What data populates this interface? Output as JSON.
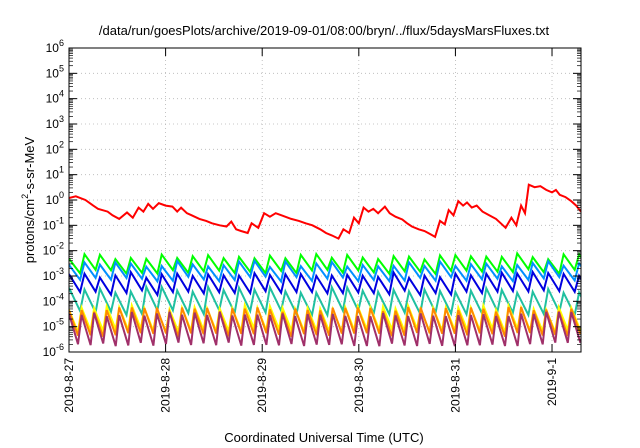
{
  "chart_data": {
    "type": "line",
    "title": "/data/run/goesPlots/archive/2019-09-01/08:00/bryn/../flux/5daysMarsFluxes.txt",
    "xlabel": "Coordinated Universal Time (UTC)",
    "ylabel_prefix": "protons/cm",
    "ylabel_sup": "2",
    "ylabel_suffix": "-s-sr-MeV",
    "x_ticks": [
      "2019-8-27",
      "2019-8-28",
      "2019-8-29",
      "2019-8-30",
      "2019-8-31",
      "2019-9-1"
    ],
    "xlim_days": [
      0,
      5.3
    ],
    "y_scale": "log",
    "ylim": [
      1e-06,
      1000000.0
    ],
    "y_tick_base": "10",
    "y_tick_exponents": [
      "-6",
      "-5",
      "-4",
      "-3",
      "-2",
      "-1",
      "0",
      "1",
      "2",
      "3",
      "4",
      "5",
      "6"
    ],
    "grid": true,
    "series": [
      {
        "color": "#ff0000",
        "points": [
          [
            0.0,
            1.2
          ],
          [
            0.07,
            1.4
          ],
          [
            0.17,
            1.0
          ],
          [
            0.25,
            0.6
          ],
          [
            0.3,
            0.45
          ],
          [
            0.4,
            0.35
          ],
          [
            0.45,
            0.25
          ],
          [
            0.52,
            0.18
          ],
          [
            0.6,
            0.32
          ],
          [
            0.66,
            0.2
          ],
          [
            0.72,
            0.5
          ],
          [
            0.77,
            0.35
          ],
          [
            0.82,
            0.7
          ],
          [
            0.87,
            0.45
          ],
          [
            0.93,
            0.75
          ],
          [
            1.0,
            0.6
          ],
          [
            1.07,
            0.55
          ],
          [
            1.12,
            0.35
          ],
          [
            1.16,
            0.5
          ],
          [
            1.22,
            0.3
          ],
          [
            1.27,
            0.25
          ],
          [
            1.35,
            0.18
          ],
          [
            1.42,
            0.15
          ],
          [
            1.48,
            0.12
          ],
          [
            1.56,
            0.1
          ],
          [
            1.63,
            0.09
          ],
          [
            1.68,
            0.14
          ],
          [
            1.73,
            0.07
          ],
          [
            1.78,
            0.06
          ],
          [
            1.85,
            0.05
          ],
          [
            1.89,
            0.12
          ],
          [
            1.96,
            0.08
          ],
          [
            2.02,
            0.3
          ],
          [
            2.08,
            0.22
          ],
          [
            2.14,
            0.3
          ],
          [
            2.2,
            0.25
          ],
          [
            2.3,
            0.18
          ],
          [
            2.38,
            0.15
          ],
          [
            2.45,
            0.12
          ],
          [
            2.52,
            0.1
          ],
          [
            2.6,
            0.07
          ],
          [
            2.66,
            0.05
          ],
          [
            2.72,
            0.04
          ],
          [
            2.79,
            0.03
          ],
          [
            2.84,
            0.07
          ],
          [
            2.9,
            0.05
          ],
          [
            2.95,
            0.2
          ],
          [
            3.0,
            0.12
          ],
          [
            3.05,
            0.5
          ],
          [
            3.1,
            0.35
          ],
          [
            3.15,
            0.45
          ],
          [
            3.2,
            0.3
          ],
          [
            3.27,
            0.55
          ],
          [
            3.32,
            0.3
          ],
          [
            3.38,
            0.22
          ],
          [
            3.45,
            0.17
          ],
          [
            3.5,
            0.12
          ],
          [
            3.55,
            0.09
          ],
          [
            3.62,
            0.07
          ],
          [
            3.68,
            0.06
          ],
          [
            3.74,
            0.045
          ],
          [
            3.79,
            0.035
          ],
          [
            3.84,
            0.15
          ],
          [
            3.89,
            0.11
          ],
          [
            3.93,
            0.4
          ],
          [
            3.98,
            0.25
          ],
          [
            4.03,
            0.9
          ],
          [
            4.08,
            0.6
          ],
          [
            4.12,
            0.8
          ],
          [
            4.17,
            0.5
          ],
          [
            4.22,
            0.6
          ],
          [
            4.28,
            0.35
          ],
          [
            4.35,
            0.25
          ],
          [
            4.42,
            0.18
          ],
          [
            4.47,
            0.12
          ],
          [
            4.52,
            0.08
          ],
          [
            4.58,
            0.2
          ],
          [
            4.63,
            0.1
          ],
          [
            4.68,
            0.6
          ],
          [
            4.72,
            0.3
          ],
          [
            4.76,
            4.0
          ],
          [
            4.82,
            3.2
          ],
          [
            4.88,
            3.5
          ],
          [
            4.94,
            2.5
          ],
          [
            5.0,
            2.0
          ],
          [
            5.04,
            2.5
          ],
          [
            5.08,
            1.6
          ],
          [
            5.14,
            1.3
          ],
          [
            5.2,
            0.9
          ],
          [
            5.25,
            0.6
          ],
          [
            5.3,
            0.35
          ]
        ]
      },
      {
        "color": "#00ff00",
        "base": 0.003,
        "amp": 0.3,
        "period": 0.16,
        "jitter": 0.25
      },
      {
        "color": "#0090ff",
        "base": 0.0015,
        "amp": 0.3,
        "period": 0.16,
        "jitter": 0.25
      },
      {
        "color": "#0000e0",
        "base": 0.0005,
        "amp": 0.35,
        "period": 0.16,
        "jitter": 0.25
      },
      {
        "color": "#20c0a0",
        "base": 0.0001,
        "amp": 0.45,
        "period": 0.16,
        "jitter": 0.25
      },
      {
        "color": "#ffff00",
        "base": 2e-05,
        "amp": 0.45,
        "period": 0.13,
        "jitter": 0.2
      },
      {
        "color": "#ff8800",
        "base": 1.5e-05,
        "amp": 0.5,
        "period": 0.13,
        "jitter": 0.2
      },
      {
        "color": "#a0306a",
        "base": 8e-06,
        "amp": 0.6,
        "period": 0.13,
        "jitter": 0.2
      }
    ]
  }
}
